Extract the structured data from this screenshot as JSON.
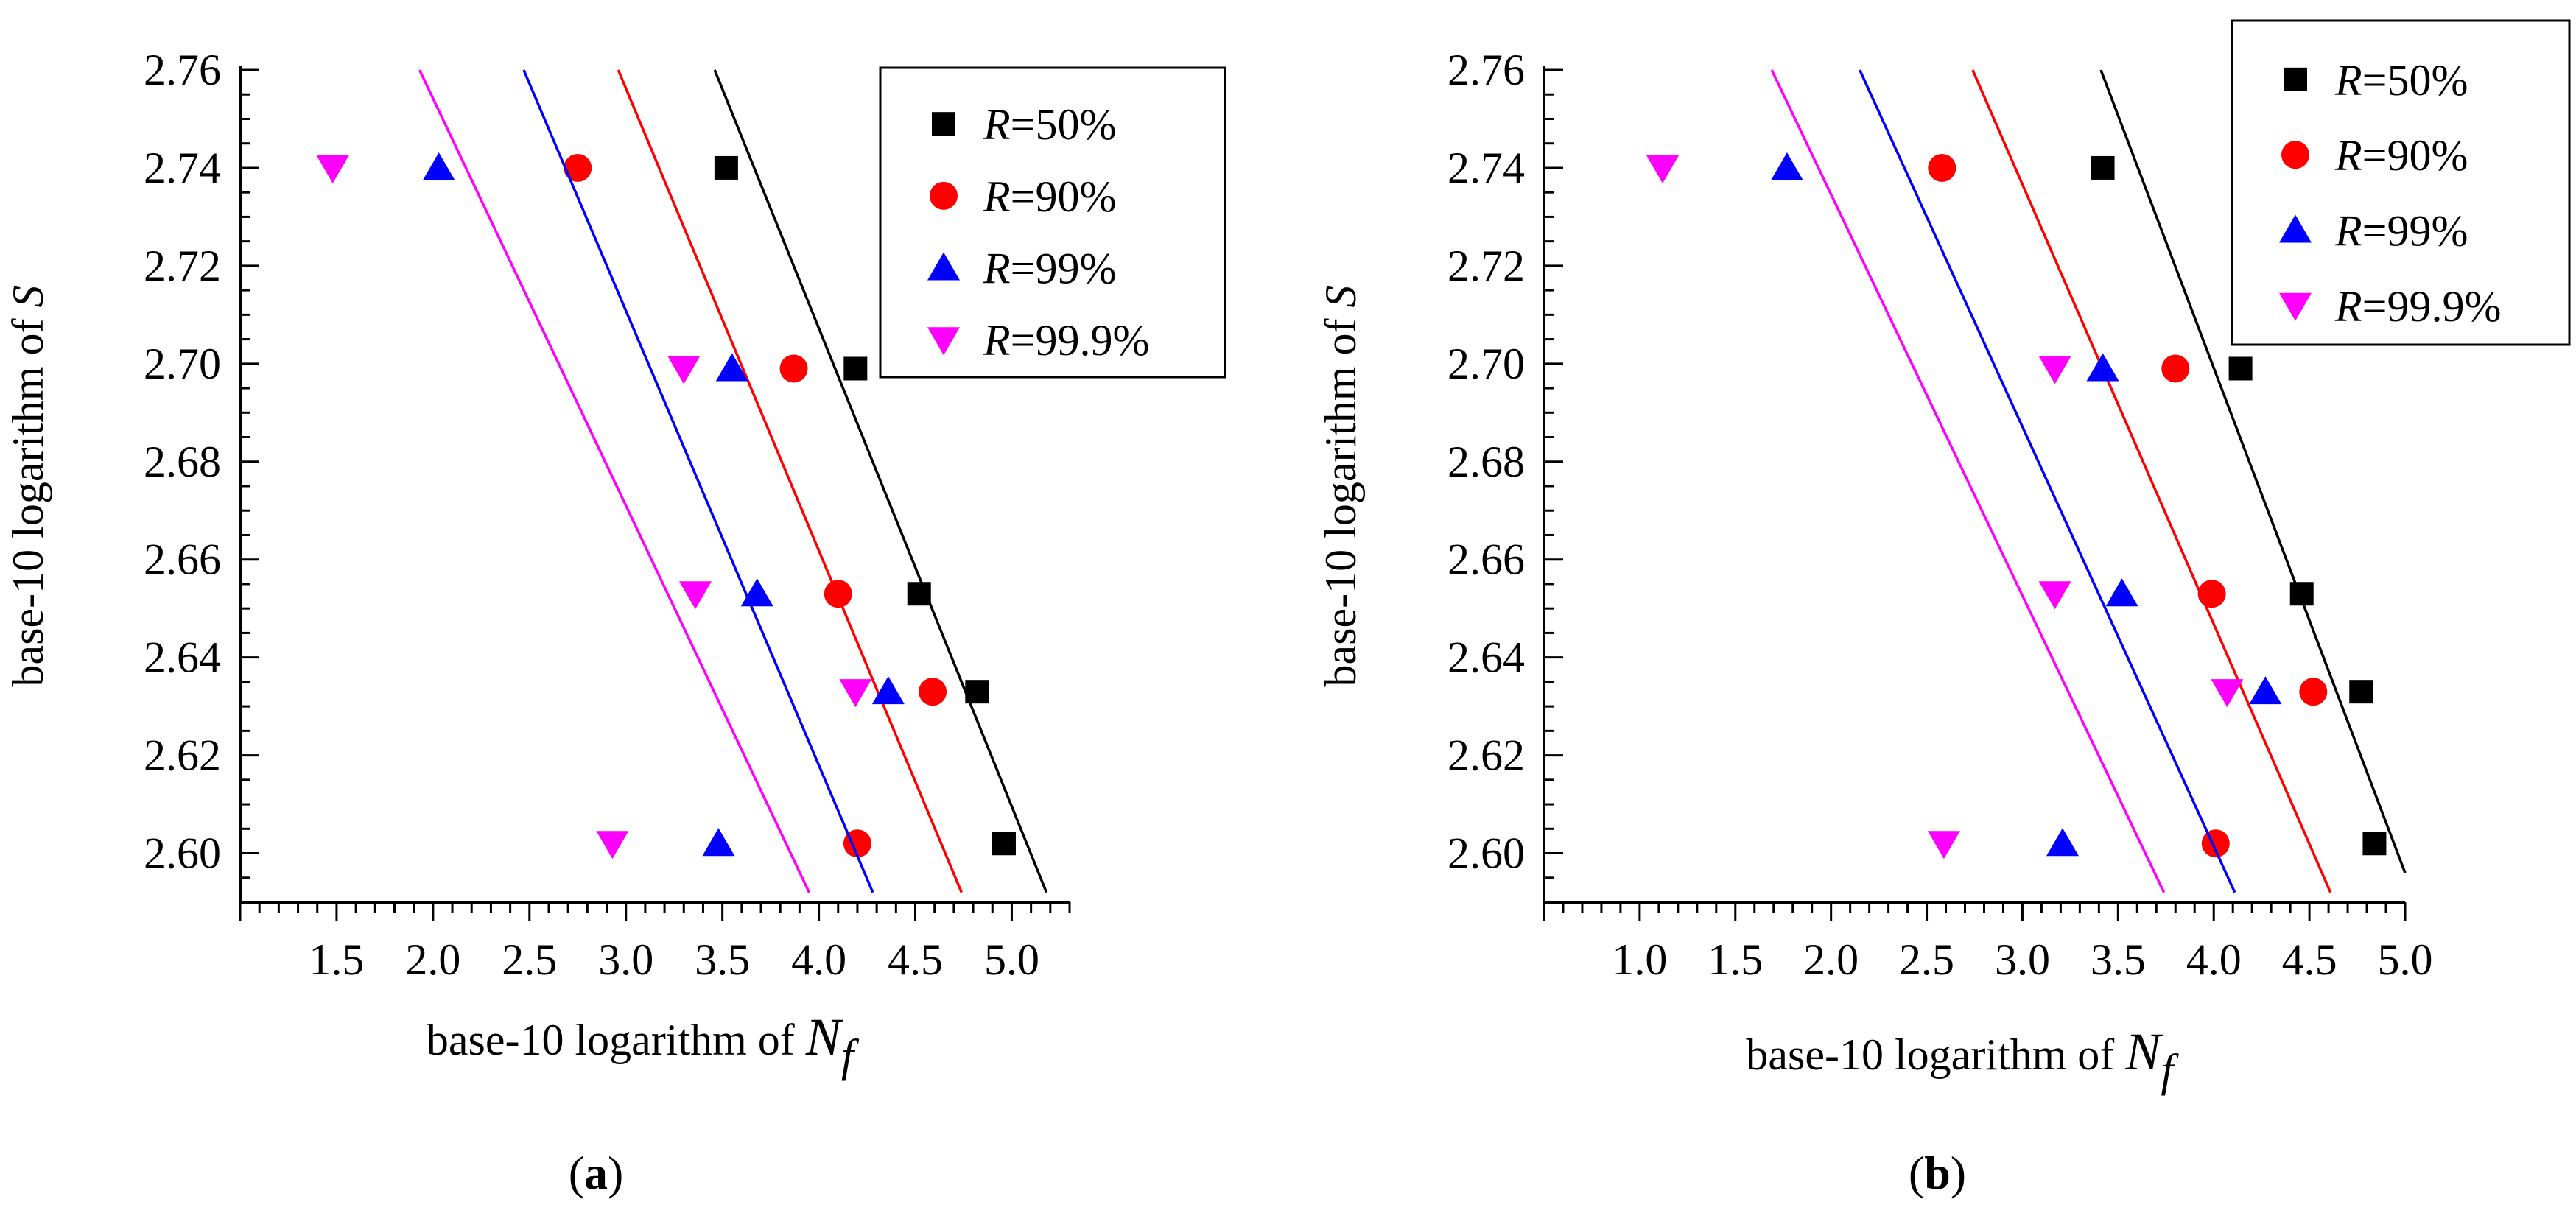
{
  "chart_data": [
    {
      "type": "scatter",
      "panel_label": "(a)",
      "panel_letter": "a",
      "xlabel_prefix": "base-10 logarithm of ",
      "xlabel_var": "N",
      "xlabel_sub": "f",
      "ylabel_prefix": "base-10 logarithm of ",
      "ylabel_var": "S",
      "xlim": [
        1.0,
        5.3
      ],
      "ylim": [
        2.59,
        2.76
      ],
      "xticks": [
        "1.5",
        "2.0",
        "2.5",
        "3.0",
        "3.5",
        "4.0",
        "4.5",
        "5.0"
      ],
      "yticks": [
        "2.60",
        "2.62",
        "2.64",
        "2.66",
        "2.68",
        "2.70",
        "2.72",
        "2.74",
        "2.76"
      ],
      "legend_position": "top-right",
      "series": [
        {
          "name": "R=50%",
          "label_var": "R",
          "label_rest": "=50%",
          "marker": "square",
          "color": "#000000",
          "points": [
            [
              3.52,
              2.74
            ],
            [
              4.19,
              2.699
            ],
            [
              4.52,
              2.653
            ],
            [
              4.82,
              2.633
            ],
            [
              4.96,
              2.602
            ]
          ],
          "line": [
            [
              3.46,
              2.76
            ],
            [
              5.18,
              2.592
            ]
          ]
        },
        {
          "name": "R=90%",
          "label_var": "R",
          "label_rest": "=90%",
          "marker": "circle",
          "color": "#ff0000",
          "points": [
            [
              2.75,
              2.74
            ],
            [
              3.87,
              2.699
            ],
            [
              4.1,
              2.653
            ],
            [
              4.59,
              2.633
            ],
            [
              4.2,
              2.602
            ]
          ],
          "line": [
            [
              2.96,
              2.76
            ],
            [
              4.74,
              2.592
            ]
          ]
        },
        {
          "name": "R=99%",
          "label_var": "R",
          "label_rest": "=99%",
          "marker": "triangle-up",
          "color": "#0000ff",
          "points": [
            [
              2.03,
              2.74
            ],
            [
              3.55,
              2.699
            ],
            [
              3.68,
              2.653
            ],
            [
              4.36,
              2.633
            ],
            [
              3.48,
              2.602
            ]
          ],
          "line": [
            [
              2.47,
              2.76
            ],
            [
              4.28,
              2.592
            ]
          ]
        },
        {
          "name": "R=99.9%",
          "label_var": "R",
          "label_rest": "=99.9%",
          "marker": "triangle-down",
          "color": "#ff00ff",
          "points": [
            [
              1.48,
              2.74
            ],
            [
              3.3,
              2.699
            ],
            [
              3.36,
              2.653
            ],
            [
              4.19,
              2.633
            ],
            [
              2.93,
              2.602
            ]
          ],
          "line": [
            [
              1.93,
              2.76
            ],
            [
              3.95,
              2.592
            ]
          ]
        }
      ]
    },
    {
      "type": "scatter",
      "panel_label": "(b)",
      "panel_letter": "b",
      "xlabel_prefix": "base-10 logarithm of ",
      "xlabel_var": "N",
      "xlabel_sub": "f",
      "ylabel_prefix": "base-10 logarithm of ",
      "ylabel_var": "S",
      "xlim": [
        0.5,
        5.0
      ],
      "ylim": [
        2.59,
        2.76
      ],
      "xticks": [
        "1.0",
        "1.5",
        "2.0",
        "2.5",
        "3.0",
        "3.5",
        "4.0",
        "4.5",
        "5.0"
      ],
      "yticks": [
        "2.60",
        "2.62",
        "2.64",
        "2.66",
        "2.68",
        "2.70",
        "2.72",
        "2.74",
        "2.76"
      ],
      "legend_position": "top-right",
      "series": [
        {
          "name": "R=50%",
          "label_var": "R",
          "label_rest": "=50%",
          "marker": "square",
          "color": "#000000",
          "points": [
            [
              3.42,
              2.74
            ],
            [
              4.14,
              2.699
            ],
            [
              4.46,
              2.653
            ],
            [
              4.77,
              2.633
            ],
            [
              4.84,
              2.602
            ]
          ],
          "line": [
            [
              3.41,
              2.76
            ],
            [
              5.0,
              2.596
            ]
          ]
        },
        {
          "name": "R=90%",
          "label_var": "R",
          "label_rest": "=90%",
          "marker": "circle",
          "color": "#ff0000",
          "points": [
            [
              2.58,
              2.74
            ],
            [
              3.8,
              2.699
            ],
            [
              3.99,
              2.653
            ],
            [
              4.52,
              2.633
            ],
            [
              4.01,
              2.602
            ]
          ],
          "line": [
            [
              2.74,
              2.76
            ],
            [
              4.61,
              2.592
            ]
          ]
        },
        {
          "name": "R=99%",
          "label_var": "R",
          "label_rest": "=99%",
          "marker": "triangle-up",
          "color": "#0000ff",
          "points": [
            [
              1.77,
              2.74
            ],
            [
              3.42,
              2.699
            ],
            [
              3.52,
              2.653
            ],
            [
              4.27,
              2.633
            ],
            [
              3.21,
              2.602
            ]
          ],
          "line": [
            [
              2.15,
              2.76
            ],
            [
              4.11,
              2.592
            ]
          ]
        },
        {
          "name": "R=99.9%",
          "label_var": "R",
          "label_rest": "=99.9%",
          "marker": "triangle-down",
          "color": "#ff00ff",
          "points": [
            [
              1.12,
              2.74
            ],
            [
              3.17,
              2.699
            ],
            [
              3.17,
              2.653
            ],
            [
              4.07,
              2.633
            ],
            [
              2.59,
              2.602
            ]
          ],
          "line": [
            [
              1.69,
              2.76
            ],
            [
              3.74,
              2.592
            ]
          ]
        }
      ]
    }
  ]
}
